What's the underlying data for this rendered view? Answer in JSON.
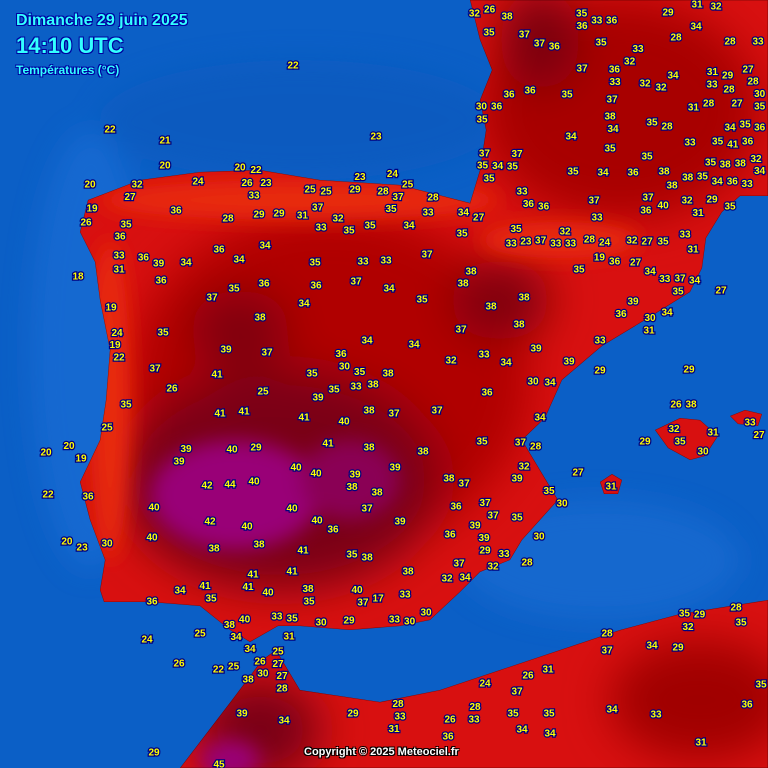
{
  "header": {
    "date": "Dimanche 29 juin 2025",
    "time": "14:10 UTC",
    "parameter": "Températures (°C)"
  },
  "copyright": "Copyright © 2025 Meteociel.fr",
  "colors": {
    "sea": "#0b5fc6",
    "land_warm": "#d81010",
    "land_hot": "#a80000",
    "land_very_hot": "#7a0018",
    "land_extreme": "#990077",
    "label": "#ffff00"
  },
  "stations": [
    "22",
    "22",
    "21",
    "23",
    "20",
    "20",
    "22",
    "26",
    "23",
    "24",
    "20",
    "32",
    "27",
    "19",
    "26",
    "36",
    "28",
    "29",
    "29",
    "31",
    "37",
    "32",
    "25",
    "25",
    "29",
    "28",
    "25",
    "23",
    "24",
    "35",
    "37",
    "28",
    "33",
    "33",
    "33",
    "35",
    "35",
    "34",
    "34",
    "27",
    "35",
    "35",
    "36",
    "18",
    "33",
    "31",
    "36",
    "39",
    "34",
    "36",
    "36",
    "34",
    "34",
    "35",
    "33",
    "33",
    "37",
    "38",
    "38",
    "37",
    "35",
    "36",
    "36",
    "34",
    "37",
    "34",
    "35",
    "38",
    "38",
    "38",
    "19",
    "38",
    "35",
    "24",
    "19",
    "22",
    "39",
    "37",
    "36",
    "34",
    "34",
    "37",
    "32",
    "33",
    "34",
    "39",
    "37",
    "26",
    "41",
    "25",
    "35",
    "35",
    "33",
    "38",
    "38",
    "35",
    "30",
    "36",
    "30",
    "34",
    "39",
    "35",
    "25",
    "41",
    "41",
    "41",
    "39",
    "40",
    "38",
    "37",
    "37",
    "34",
    "20",
    "20",
    "19",
    "39",
    "40",
    "29",
    "41",
    "38",
    "38",
    "35",
    "37",
    "28",
    "39",
    "40",
    "40",
    "39",
    "38",
    "39",
    "38",
    "37",
    "32",
    "39",
    "22",
    "36",
    "42",
    "44",
    "40",
    "38",
    "35",
    "30",
    "40",
    "40",
    "40",
    "36",
    "37",
    "39",
    "36",
    "37",
    "37",
    "35",
    "39",
    "42",
    "40",
    "40",
    "30",
    "20",
    "23",
    "38",
    "38",
    "36",
    "39",
    "29",
    "33",
    "30",
    "41",
    "35",
    "38",
    "37",
    "32",
    "28",
    "41",
    "41",
    "41",
    "38",
    "32",
    "34",
    "41",
    "34",
    "35",
    "38",
    "35",
    "40",
    "37",
    "17",
    "33",
    "36",
    "40",
    "30",
    "40",
    "38",
    "34",
    "33",
    "35",
    "30",
    "29",
    "33",
    "30",
    "31",
    "24",
    "25",
    "34",
    "25",
    "27",
    "30",
    "27",
    "26",
    "25",
    "22",
    "26",
    "38",
    "28",
    "39",
    "34",
    "29",
    "28",
    "33",
    "31",
    "26",
    "33",
    "36",
    "28",
    "29",
    "45",
    "24",
    "37",
    "26",
    "31",
    "35",
    "35",
    "34",
    "34",
    "28",
    "37",
    "34",
    "29",
    "35",
    "29",
    "32",
    "28",
    "35",
    "35",
    "36",
    "34",
    "33",
    "31",
    "31",
    "27",
    "29",
    "32",
    "35",
    "30",
    "31",
    "33",
    "27",
    "38",
    "26",
    "29",
    "29",
    "33",
    "33",
    "28",
    "24",
    "19",
    "36",
    "27",
    "34",
    "33",
    "37",
    "34",
    "35",
    "27",
    "39",
    "36",
    "30",
    "34",
    "31",
    "33",
    "35",
    "37",
    "35",
    "33",
    "23",
    "32",
    "33",
    "32",
    "27",
    "35",
    "31",
    "33",
    "32",
    "26",
    "38",
    "35",
    "37",
    "37",
    "36",
    "35",
    "36",
    "33",
    "36",
    "29",
    "31",
    "32",
    "28",
    "34",
    "28",
    "33",
    "35",
    "33",
    "32",
    "37",
    "36",
    "33",
    "32",
    "32",
    "34",
    "31",
    "29",
    "27",
    "33",
    "28",
    "28",
    "30",
    "30",
    "35",
    "36",
    "36",
    "36",
    "35",
    "37",
    "38",
    "34",
    "35",
    "28",
    "31",
    "28",
    "27",
    "35",
    "34",
    "35",
    "36",
    "34",
    "35",
    "35",
    "33",
    "35",
    "36",
    "41",
    "35",
    "38",
    "38",
    "32",
    "37",
    "37",
    "34",
    "35",
    "35",
    "35",
    "34",
    "35",
    "38",
    "36",
    "38",
    "38",
    "35",
    "34",
    "36",
    "33",
    "34",
    "33",
    "36",
    "36",
    "37",
    "36",
    "40",
    "37",
    "32",
    "31",
    "29",
    "35"
  ]
}
